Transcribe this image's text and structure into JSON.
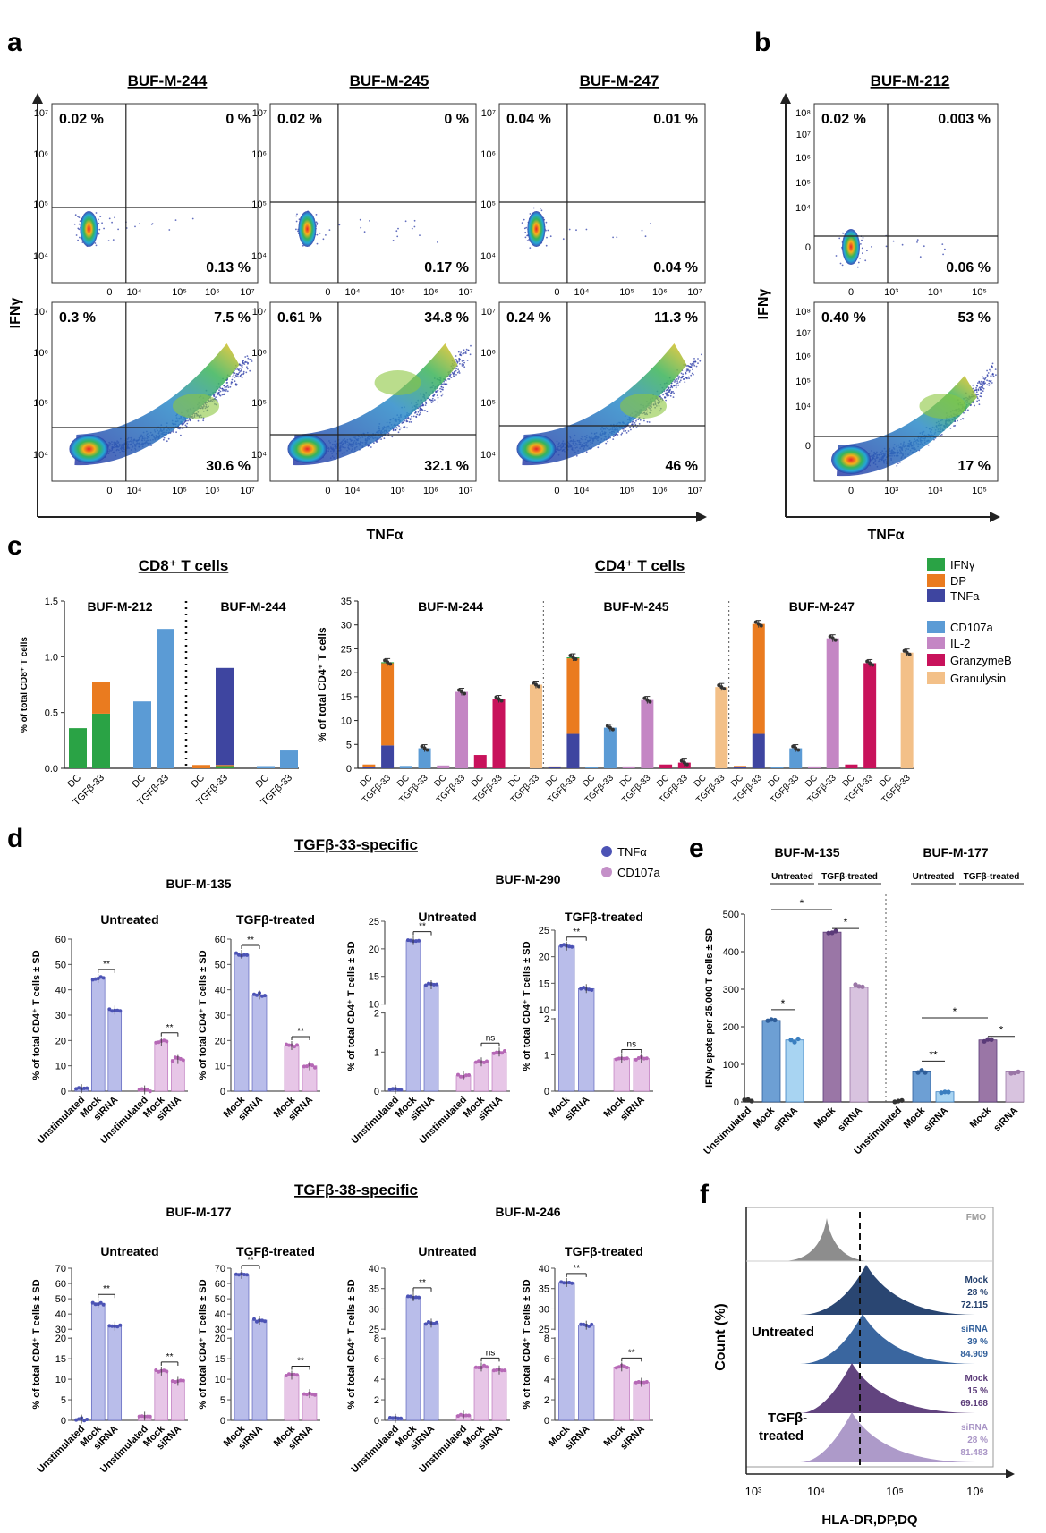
{
  "panels": {
    "a": "a",
    "b": "b",
    "c": "c",
    "d": "d",
    "e": "e",
    "f": "f"
  },
  "flow": {
    "y_label": "IFNγ",
    "x_label": "TNFα",
    "samples_a": [
      "BUF-M-244",
      "BUF-M-245",
      "BUF-M-247"
    ],
    "sample_b": "BUF-M-212",
    "quadrants": [
      {
        "ul": "0.02 %",
        "ur": "0 %",
        "lr": "0.13 %"
      },
      {
        "ul": "0.02 %",
        "ur": "0 %",
        "lr": "0.17 %"
      },
      {
        "ul": "0.04 %",
        "ur": "0.01 %",
        "lr": "0.04 %"
      },
      {
        "ul": "0.3 %",
        "ur": "7.5 %",
        "lr": "30.6 %"
      },
      {
        "ul": "0.61 %",
        "ur": "34.8 %",
        "lr": "32.1 %"
      },
      {
        "ul": "0.24 %",
        "ur": "11.3 %",
        "lr": "46 %"
      },
      {
        "ul": "0.02 %",
        "ur": "0.003 %",
        "lr": "0.06 %"
      },
      {
        "ul": "0.40 %",
        "ur": "53 %",
        "lr": "17 %"
      }
    ],
    "x_ticks_a": [
      "0",
      "10⁴",
      "10⁵",
      "10⁶",
      "10⁷"
    ],
    "x_ticks_b": [
      "0",
      "10³",
      "10⁴",
      "10⁵"
    ]
  },
  "chart_data": [
    {
      "type": "bar",
      "title": "CD8⁺ T cells",
      "ylabel": "% of total CD8⁺ T cells",
      "ylim": [
        0,
        1.5
      ],
      "yticks": [
        "0.0",
        "0.5",
        "1.0",
        "1.5"
      ],
      "groups": [
        "BUF-M-212",
        "BUF-M-244"
      ],
      "categories": [
        "DC",
        "TGFβ-33",
        "DC",
        "TGFβ-33",
        "DC",
        "TGFβ-33",
        "DC",
        "TGFβ-33"
      ],
      "series": [
        {
          "name": "IFNγ",
          "values": [
            0.36,
            0.49,
            null,
            null,
            0,
            0.02,
            null,
            null
          ]
        },
        {
          "name": "DP",
          "values": [
            0,
            0.28,
            null,
            null,
            0.03,
            0.01,
            null,
            null
          ]
        },
        {
          "name": "TNFa",
          "values": [
            0,
            0,
            null,
            null,
            0,
            0.87,
            null,
            null
          ]
        },
        {
          "name": "CD107a",
          "values": [
            null,
            null,
            0.6,
            1.25,
            null,
            null,
            0.02,
            0.16
          ]
        }
      ]
    },
    {
      "type": "bar",
      "title": "CD4⁺ T cells",
      "ylabel": "% of total CD4⁺ T cells",
      "ylim": [
        0,
        35
      ],
      "yticks": [
        "0",
        "5",
        "10",
        "15",
        "20",
        "25",
        "30",
        "35"
      ],
      "groups": [
        "BUF-M-244",
        "BUF-M-245",
        "BUF-M-247"
      ],
      "categories": [
        "DC",
        "TGFβ-33"
      ],
      "markers": [
        "IFNγ/DP/TNFa",
        "CD107a",
        "IL-2",
        "GranzymeB",
        "Granulysin"
      ],
      "legend": [
        "IFNγ",
        "DP",
        "TNFa",
        "CD107a",
        "IL-2",
        "GranzymeB",
        "Granulysin"
      ],
      "values": {
        "BUF-M-244": {
          "TNFa": [
            0.3,
            4.8
          ],
          "DP": [
            0.5,
            17.2
          ],
          "IFNγ": [
            0,
            0.2
          ],
          "CD107a": [
            0.5,
            4.2
          ],
          "IL-2": [
            0.6,
            16
          ],
          "GranzymeB": [
            2.8,
            14.5
          ],
          "Granulysin": [
            0,
            17.5
          ]
        },
        "BUF-M-245": {
          "TNFa": [
            0.2,
            7.2
          ],
          "DP": [
            0.2,
            15.8
          ],
          "IFNγ": [
            0,
            0.2
          ],
          "CD107a": [
            0.3,
            8.5
          ],
          "IL-2": [
            0.4,
            14.3
          ],
          "GranzymeB": [
            0.8,
            1.2
          ],
          "Granulysin": [
            0,
            17
          ]
        },
        "BUF-M-247": {
          "TNFa": [
            0.2,
            7.2
          ],
          "DP": [
            0.3,
            23
          ],
          "IFNγ": [
            0,
            0
          ],
          "CD107a": [
            0.3,
            4.2
          ],
          "IL-2": [
            0.4,
            27.2
          ],
          "GranzymeB": [
            0.8,
            22
          ],
          "Granulysin": [
            0,
            24.2
          ]
        }
      }
    },
    {
      "type": "bar",
      "title": "TGFβ-33-specific",
      "ylabel": "% of total CD4⁺ T cells ± SD",
      "legend": [
        "TNFα",
        "CD107a"
      ],
      "subplots": [
        {
          "sample": "BUF-M-135",
          "condition": "Untreated",
          "ylim": [
            0,
            60
          ],
          "yticks": [
            "0",
            "10",
            "20",
            "30",
            "40",
            "50",
            "60"
          ],
          "categories": [
            "Unstimulated",
            "Mock",
            "siRNA",
            "Unstimulated",
            "Mock",
            "siRNA"
          ],
          "values": [
            1,
            44.5,
            32,
            0.5,
            19.5,
            12.5
          ],
          "sig": [
            "**",
            "**"
          ]
        },
        {
          "sample": "BUF-M-135",
          "condition": "TGFβ-treated",
          "ylim": [
            0,
            60
          ],
          "yticks": [
            "0",
            "10",
            "20",
            "30",
            "40",
            "50",
            "60"
          ],
          "categories": [
            "Mock",
            "siRNA",
            "Mock",
            "siRNA"
          ],
          "values": [
            54,
            38,
            18,
            10
          ],
          "sig": [
            "**",
            "**"
          ]
        },
        {
          "sample": "BUF-M-290",
          "condition": "Untreated",
          "ylim": [
            0,
            25
          ],
          "yticks": [
            "0",
            "1",
            "2",
            "10",
            "15",
            "20",
            "25"
          ],
          "categories": [
            "Unstimulated",
            "Mock",
            "siRNA",
            "Unstimulated",
            "Mock",
            "siRNA"
          ],
          "values": [
            0.05,
            21.5,
            13.5,
            0.4,
            0.75,
            1.0
          ],
          "sig": [
            "**",
            "ns"
          ]
        },
        {
          "sample": "BUF-M-290",
          "condition": "TGFβ-treated",
          "ylim": [
            0,
            25
          ],
          "yticks": [
            "0",
            "1",
            "2",
            "10",
            "15",
            "20",
            "25"
          ],
          "categories": [
            "Mock",
            "siRNA",
            "Mock",
            "siRNA"
          ],
          "values": [
            22,
            14,
            0.9,
            0.9
          ],
          "sig": [
            "**",
            "ns"
          ]
        }
      ]
    },
    {
      "type": "bar",
      "title": "TGFβ-38-specific",
      "ylabel": "% of total CD4⁺ T cells ± SD",
      "subplots": [
        {
          "sample": "BUF-M-177",
          "condition": "Untreated",
          "ylim": [
            0,
            70
          ],
          "yticks": [
            "0",
            "5",
            "10",
            "15",
            "20",
            "30",
            "40",
            "50",
            "60",
            "70"
          ],
          "categories": [
            "Unstimulated",
            "Mock",
            "siRNA",
            "Unstimulated",
            "Mock",
            "siRNA"
          ],
          "values": [
            0.3,
            47,
            32,
            1,
            12,
            9.5
          ],
          "sig": [
            "**",
            "**"
          ]
        },
        {
          "sample": "BUF-M-177",
          "condition": "TGFβ-treated",
          "ylim": [
            0,
            70
          ],
          "yticks": [
            "0",
            "5",
            "10",
            "15",
            "20",
            "30",
            "40",
            "50",
            "60",
            "70"
          ],
          "categories": [
            "Mock",
            "siRNA",
            "Mock",
            "siRNA"
          ],
          "values": [
            66,
            36,
            11,
            6.5
          ],
          "sig": [
            "**",
            "**"
          ]
        },
        {
          "sample": "BUF-M-246",
          "condition": "Untreated",
          "ylim": [
            0,
            40
          ],
          "yticks": [
            "0",
            "2",
            "4",
            "6",
            "8",
            "25",
            "30",
            "35",
            "40"
          ],
          "categories": [
            "Unstimulated",
            "Mock",
            "siRNA",
            "Unstimulated",
            "Mock",
            "siRNA"
          ],
          "values": [
            0.2,
            33,
            26.5,
            0.5,
            5.2,
            4.9
          ],
          "sig": [
            "**",
            "ns"
          ]
        },
        {
          "sample": "BUF-M-246",
          "condition": "TGFβ-treated",
          "ylim": [
            0,
            40
          ],
          "yticks": [
            "0",
            "2",
            "4",
            "6",
            "8",
            "25",
            "30",
            "35",
            "40"
          ],
          "categories": [
            "Mock",
            "siRNA",
            "Mock",
            "siRNA"
          ],
          "values": [
            36.5,
            26,
            5.2,
            3.7
          ],
          "sig": [
            "**",
            "**"
          ]
        }
      ]
    },
    {
      "type": "bar",
      "title": "",
      "ylabel": "IFNγ spots per 25.000 T cells ± SD",
      "ylim": [
        0,
        500
      ],
      "yticks": [
        "0",
        "100",
        "200",
        "300",
        "400",
        "500"
      ],
      "groups": [
        {
          "sample": "BUF-M-135",
          "sub": [
            "Untreated",
            "TGFβ-treated"
          ],
          "categories": [
            "Unstimulated",
            "Mock",
            "siRNA",
            "Mock",
            "siRNA"
          ],
          "values": [
            3,
            217,
            165,
            452,
            305
          ]
        },
        {
          "sample": "BUF-M-177",
          "sub": [
            "Untreated",
            "TGFβ-treated"
          ],
          "categories": [
            "Unstimulated",
            "Mock",
            "siRNA",
            "Mock",
            "siRNA"
          ],
          "values": [
            3,
            80,
            27,
            165,
            80
          ]
        }
      ],
      "sig": [
        "*",
        "*",
        "*",
        "**",
        "*",
        "*"
      ]
    }
  ],
  "hist": {
    "y_label": "Count (%)",
    "x_label": "HLA-DR,DP,DQ",
    "x_ticks": [
      "10³",
      "10⁴",
      "10⁵",
      "10⁶"
    ],
    "fmo": "FMO",
    "groups": [
      "Untreated",
      "TGFβ-\ntreated"
    ],
    "group1": "Untreated",
    "group2a": "TGFβ-",
    "group2b": "treated",
    "tracks": [
      {
        "name": "Mock",
        "pct": "28 %",
        "mfi": "72.115",
        "color": "#1f3c6a"
      },
      {
        "name": "siRNA",
        "pct": "39 %",
        "mfi": "84.909",
        "color": "#2f5e9a"
      },
      {
        "name": "Mock",
        "pct": "15 %",
        "mfi": "69.168",
        "color": "#5a3a78"
      },
      {
        "name": "siRNA",
        "pct": "28 %",
        "mfi": "81.483",
        "color": "#a995c6"
      }
    ]
  },
  "colors": {
    "IFNγ": "#2aa345",
    "DP": "#ea7b1f",
    "TNFa": "#3e45a0",
    "CD107a": "#5b9bd5",
    "IL-2": "#c486c4",
    "GranzymeB": "#c8125b",
    "Granulysin": "#f3c088",
    "tnf_bar": "#b9bdea",
    "cd107_bar": "#e7c6e7",
    "tnf_dot": "#4c53b5",
    "cd107_dot": "#b668b6",
    "e_mock": "#6d9fd4",
    "e_sirna": "#a8d4f2",
    "e_tmock": "#9a76a6",
    "e_tsirna": "#d8c3df"
  }
}
